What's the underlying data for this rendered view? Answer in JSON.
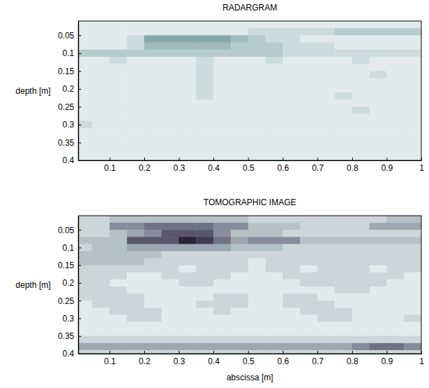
{
  "chart_data": [
    {
      "type": "heatmap",
      "title": "RADARGRAM",
      "ylabel": "depth [m]",
      "xlim": [
        0.01,
        1
      ],
      "ylim": [
        0.01,
        0.4
      ],
      "xticks": [
        0.1,
        0.2,
        0.3,
        0.4,
        0.5,
        0.6,
        0.7,
        0.8,
        0.9,
        1
      ],
      "yticks": [
        0.05,
        0.1,
        0.15,
        0.2,
        0.25,
        0.3,
        0.35,
        0.4
      ],
      "x_bins": [
        0.01,
        0.05,
        0.1,
        0.15,
        0.2,
        0.25,
        0.3,
        0.35,
        0.4,
        0.45,
        0.5,
        0.55,
        0.6,
        0.65,
        0.7,
        0.75,
        0.8,
        0.85,
        0.9,
        0.95,
        1
      ],
      "y_bins": [
        0.01,
        0.03,
        0.05,
        0.07,
        0.09,
        0.11,
        0.13,
        0.15,
        0.17,
        0.19,
        0.21,
        0.23,
        0.25,
        0.27,
        0.29,
        0.31,
        0.33,
        0.35,
        0.37,
        0.39,
        0.4
      ],
      "zlim": [
        0,
        9
      ],
      "values": [
        [
          1,
          1,
          1,
          1,
          1,
          1,
          1,
          1,
          1,
          1,
          1,
          1,
          1,
          1,
          1,
          1,
          1,
          1,
          1,
          1
        ],
        [
          1,
          1,
          1,
          1,
          1,
          1,
          1,
          1,
          1,
          1,
          2,
          2,
          2,
          2,
          2,
          3,
          3,
          3,
          3,
          3
        ],
        [
          1,
          1,
          1,
          2,
          5,
          5,
          5,
          5,
          5,
          4,
          3,
          2,
          2,
          1,
          1,
          1,
          1,
          1,
          1,
          1
        ],
        [
          1,
          1,
          1,
          2,
          4,
          4,
          4,
          4,
          4,
          3,
          3,
          3,
          2,
          2,
          2,
          1,
          1,
          1,
          1,
          1
        ],
        [
          3,
          3,
          3,
          3,
          3,
          3,
          3,
          3,
          3,
          3,
          3,
          3,
          2,
          2,
          2,
          2,
          2,
          2,
          2,
          2
        ],
        [
          1,
          1,
          2,
          1,
          1,
          1,
          1,
          2,
          1,
          1,
          1,
          2,
          1,
          1,
          1,
          1,
          2,
          1,
          1,
          1
        ],
        [
          1,
          1,
          1,
          1,
          1,
          1,
          1,
          2,
          1,
          1,
          1,
          1,
          1,
          1,
          1,
          1,
          1,
          1,
          1,
          1
        ],
        [
          1,
          1,
          1,
          1,
          1,
          1,
          1,
          2,
          1,
          1,
          1,
          1,
          1,
          1,
          1,
          1,
          1,
          2,
          1,
          1
        ],
        [
          1,
          1,
          1,
          1,
          1,
          1,
          1,
          2,
          1,
          1,
          1,
          1,
          1,
          1,
          1,
          1,
          1,
          1,
          1,
          1
        ],
        [
          1,
          1,
          1,
          1,
          1,
          1,
          1,
          2,
          1,
          1,
          1,
          1,
          1,
          1,
          1,
          1,
          1,
          1,
          1,
          1
        ],
        [
          1,
          1,
          1,
          1,
          1,
          1,
          1,
          2,
          1,
          1,
          1,
          1,
          1,
          1,
          1,
          2,
          1,
          1,
          1,
          1
        ],
        [
          1,
          1,
          1,
          1,
          1,
          1,
          1,
          1,
          1,
          1,
          1,
          1,
          1,
          1,
          1,
          1,
          1,
          1,
          1,
          1
        ],
        [
          1,
          1,
          1,
          1,
          1,
          1,
          1,
          1,
          1,
          1,
          1,
          1,
          1,
          1,
          1,
          1,
          2,
          1,
          1,
          1
        ],
        [
          1,
          1,
          1,
          1,
          1,
          1,
          1,
          1,
          1,
          1,
          1,
          1,
          1,
          1,
          1,
          1,
          1,
          1,
          1,
          1
        ],
        [
          2,
          1,
          1,
          1,
          1,
          1,
          1,
          1,
          1,
          1,
          1,
          1,
          1,
          1,
          1,
          1,
          1,
          1,
          1,
          1
        ],
        [
          1,
          1,
          1,
          1,
          1,
          1,
          1,
          1,
          1,
          1,
          1,
          1,
          1,
          1,
          1,
          1,
          1,
          1,
          1,
          1
        ],
        [
          1,
          1,
          1,
          1,
          1,
          1,
          1,
          1,
          1,
          1,
          1,
          1,
          1,
          1,
          1,
          1,
          1,
          1,
          1,
          1
        ],
        [
          1,
          1,
          1,
          1,
          1,
          1,
          1,
          1,
          1,
          1,
          1,
          1,
          1,
          1,
          1,
          1,
          1,
          1,
          1,
          1
        ],
        [
          1,
          1,
          1,
          1,
          1,
          1,
          1,
          1,
          1,
          1,
          1,
          1,
          1,
          1,
          1,
          1,
          1,
          1,
          1,
          1
        ],
        [
          1,
          1,
          1,
          1,
          1,
          1,
          1,
          1,
          1,
          1,
          1,
          1,
          1,
          1,
          1,
          1,
          1,
          1,
          1,
          1
        ]
      ]
    },
    {
      "type": "heatmap",
      "title": "TOMOGRAPHIC IMAGE",
      "xlabel": "abscissa [m]",
      "ylabel": "depth [m]",
      "xlim": [
        0.01,
        1
      ],
      "ylim": [
        0.01,
        0.4
      ],
      "xticks": [
        0.1,
        0.2,
        0.3,
        0.4,
        0.5,
        0.6,
        0.7,
        0.8,
        0.9,
        1
      ],
      "yticks": [
        0.05,
        0.1,
        0.15,
        0.2,
        0.25,
        0.3,
        0.35,
        0.4
      ],
      "x_bins": [
        0.01,
        0.05,
        0.1,
        0.15,
        0.2,
        0.25,
        0.3,
        0.35,
        0.4,
        0.45,
        0.5,
        0.55,
        0.6,
        0.65,
        0.7,
        0.75,
        0.8,
        0.85,
        0.9,
        0.95,
        1
      ],
      "y_bins": [
        0.01,
        0.03,
        0.05,
        0.07,
        0.09,
        0.11,
        0.13,
        0.15,
        0.17,
        0.19,
        0.21,
        0.23,
        0.25,
        0.27,
        0.29,
        0.31,
        0.33,
        0.35,
        0.37,
        0.39,
        0.4
      ],
      "zlim": [
        0,
        9
      ],
      "values": [
        [
          2,
          2,
          3,
          3,
          3,
          3,
          3,
          3,
          3,
          3,
          2,
          2,
          2,
          2,
          2,
          2,
          2,
          2,
          3,
          3
        ],
        [
          2,
          2,
          5,
          5,
          6,
          6,
          6,
          6,
          5,
          5,
          3,
          3,
          3,
          2,
          2,
          2,
          2,
          4,
          4,
          4
        ],
        [
          2,
          2,
          3,
          4,
          5,
          7,
          7,
          7,
          5,
          3,
          3,
          3,
          2,
          2,
          2,
          2,
          2,
          2,
          2,
          2
        ],
        [
          3,
          3,
          3,
          7,
          7,
          7,
          9,
          8,
          6,
          4,
          5,
          5,
          5,
          3,
          3,
          3,
          3,
          3,
          3,
          3
        ],
        [
          2,
          3,
          3,
          4,
          4,
          4,
          4,
          4,
          4,
          3,
          3,
          3,
          2,
          2,
          2,
          2,
          2,
          2,
          2,
          2
        ],
        [
          3,
          3,
          3,
          3,
          3,
          2,
          2,
          2,
          2,
          2,
          2,
          2,
          2,
          2,
          2,
          2,
          2,
          2,
          2,
          2
        ],
        [
          3,
          3,
          3,
          3,
          2,
          2,
          2,
          2,
          2,
          2,
          1,
          2,
          2,
          2,
          2,
          2,
          2,
          2,
          2,
          2
        ],
        [
          2,
          2,
          2,
          2,
          2,
          2,
          1,
          2,
          2,
          2,
          1,
          2,
          2,
          1,
          2,
          2,
          2,
          1,
          2,
          2
        ],
        [
          2,
          2,
          2,
          1,
          1,
          2,
          2,
          2,
          2,
          1,
          1,
          1,
          2,
          2,
          2,
          2,
          2,
          2,
          2,
          1
        ],
        [
          2,
          2,
          1,
          1,
          1,
          1,
          2,
          2,
          1,
          1,
          1,
          1,
          1,
          2,
          2,
          2,
          2,
          2,
          1,
          1
        ],
        [
          2,
          2,
          2,
          1,
          1,
          1,
          1,
          1,
          1,
          1,
          1,
          1,
          1,
          1,
          1,
          2,
          2,
          1,
          1,
          1
        ],
        [
          2,
          2,
          2,
          2,
          1,
          1,
          1,
          1,
          2,
          2,
          1,
          1,
          2,
          2,
          1,
          1,
          1,
          1,
          1,
          1
        ],
        [
          1,
          2,
          2,
          2,
          1,
          1,
          1,
          2,
          2,
          2,
          1,
          1,
          2,
          2,
          2,
          1,
          1,
          1,
          1,
          1
        ],
        [
          1,
          1,
          2,
          2,
          2,
          1,
          1,
          1,
          2,
          1,
          1,
          1,
          1,
          2,
          2,
          2,
          1,
          1,
          1,
          1
        ],
        [
          1,
          1,
          1,
          2,
          2,
          1,
          1,
          1,
          1,
          1,
          1,
          1,
          1,
          1,
          2,
          2,
          1,
          1,
          1,
          2
        ],
        [
          1,
          1,
          1,
          1,
          1,
          1,
          1,
          1,
          1,
          1,
          1,
          1,
          1,
          1,
          1,
          1,
          1,
          1,
          1,
          1
        ],
        [
          1,
          1,
          1,
          1,
          1,
          1,
          1,
          1,
          1,
          1,
          1,
          1,
          1,
          1,
          1,
          1,
          1,
          1,
          1,
          1
        ],
        [
          2,
          2,
          2,
          2,
          2,
          2,
          2,
          2,
          2,
          2,
          2,
          2,
          2,
          2,
          2,
          2,
          2,
          2,
          2,
          2
        ],
        [
          4,
          4,
          4,
          4,
          4,
          4,
          4,
          4,
          4,
          4,
          4,
          4,
          4,
          4,
          4,
          4,
          5,
          6,
          6,
          5
        ],
        [
          2,
          2,
          2,
          2,
          2,
          2,
          2,
          2,
          2,
          2,
          2,
          2,
          2,
          2,
          2,
          2,
          2,
          2,
          2,
          2
        ]
      ]
    }
  ]
}
